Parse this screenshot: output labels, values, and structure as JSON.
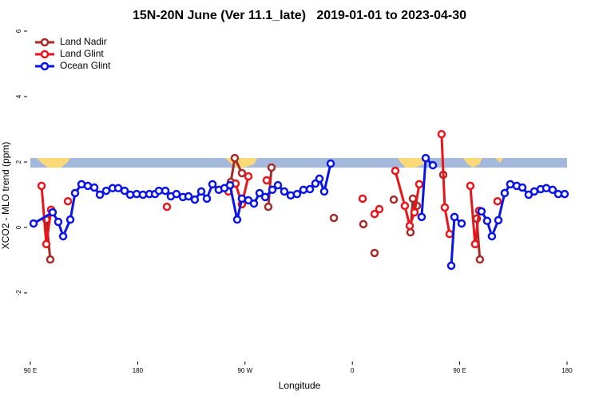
{
  "chart_data": {
    "type": "line",
    "title": "15N-20N June (Ver 11.1_late)   2019-01-01 to 2023-04-30",
    "x_label": "Longitude",
    "y_label": "XCO2 - MLO trend (ppm)",
    "xlim": [
      90,
      540
    ],
    "ylim": [
      -4,
      6
    ],
    "xticks": [
      {
        "value": 90,
        "label": "90 E"
      },
      180,
      {
        "value": 270,
        "label": "90 W"
      },
      {
        "value": 360,
        "label": "0"
      },
      {
        "value": 450,
        "label": "90 E"
      },
      {
        "value": 540,
        "label": "180"
      }
    ],
    "yticks": [
      -2,
      0,
      2,
      4,
      6
    ],
    "legend": "top-left",
    "series": [
      {
        "name": "Land Nadir",
        "color": "#a52a2a",
        "x": [
          103.4,
          106.7,
          110,
          258.1,
          261.4,
          267.4,
          270,
          289.5,
          292.2,
          300,
          344.5,
          360,
          369.2,
          375,
          378.6,
          385,
          394.7,
          400,
          408.7,
          410.7,
          414.1,
          420,
          436.2,
          450,
          464.3,
          466.9
        ],
        "values": [
          0.24,
          -0.98,
          null,
          1.39,
          2.12,
          1.66,
          null,
          0.63,
          1.83,
          null,
          0.29,
          null,
          0.1,
          null,
          -0.78,
          null,
          0.85,
          null,
          -0.15,
          0.88,
          0.66,
          null,
          1.61,
          null,
          0.27,
          -0.98
        ]
      },
      {
        "name": "Land Glint",
        "color": "#e8151b",
        "x": [
          99.4,
          103.4,
          107.4,
          108,
          121.5,
          150,
          204.5,
          240,
          256.1,
          262.1,
          267.4,
          272.8,
          275,
          288.2,
          300,
          368.6,
          375,
          378.6,
          382.6,
          385,
          396.0,
          404.0,
          408.1,
          412.1,
          416.1,
          419,
          434.8,
          437.5,
          441.5,
          445,
          458.9,
          462.9,
          466.3,
          470,
          481.7
        ],
        "values": [
          1.27,
          -0.51,
          0.54,
          null,
          0.8,
          null,
          0.63,
          null,
          1.1,
          1.34,
          0.71,
          1.56,
          null,
          1.44,
          null,
          0.88,
          null,
          0.41,
          0.56,
          null,
          1.73,
          0.66,
          0.05,
          0.46,
          1.32,
          null,
          2.85,
          0.61,
          -0.2,
          null,
          1.27,
          -0.51,
          0.51,
          null,
          0.8
        ]
      },
      {
        "name": "Ocean Glint",
        "color": "#0a14e6",
        "x": [
          92.7,
          108.7,
          113.4,
          117.5,
          123.5,
          127.5,
          132.9,
          138.2,
          143.6,
          148.3,
          153.6,
          159.0,
          163.7,
          169.0,
          173.7,
          179.1,
          184.4,
          189.8,
          194.5,
          197.8,
          203.2,
          207.8,
          212.5,
          217.9,
          222.6,
          227.9,
          233.3,
          238.0,
          242.7,
          248.0,
          252.7,
          257.4,
          263.4,
          267.4,
          272.8,
          277.5,
          282.2,
          286.9,
          292.9,
          297.6,
          302.9,
          308.3,
          313.6,
          319.0,
          324.4,
          329.0,
          332.4,
          336.4,
          341.8,
          400,
          418.1,
          421.5,
          427.5,
          430,
          442.9,
          445.6,
          451.6,
          455,
          468.3,
          473.0,
          477.0,
          482.4,
          487.7,
          492.4,
          497.8,
          502.5,
          507.8,
          512.5,
          517.9,
          522.6,
          527.9,
          532.6,
          538.0
        ],
        "values": [
          0.12,
          0.46,
          0.17,
          -0.27,
          0.24,
          1.05,
          1.32,
          1.27,
          1.22,
          1.0,
          1.12,
          1.2,
          1.2,
          1.12,
          1.0,
          1.02,
          1.0,
          1.02,
          1.02,
          1.12,
          1.12,
          0.95,
          1.02,
          0.93,
          0.95,
          0.85,
          1.1,
          0.88,
          1.32,
          1.15,
          1.2,
          1.29,
          0.24,
          0.88,
          0.83,
          0.73,
          1.05,
          0.93,
          1.15,
          1.29,
          1.1,
          0.98,
          1.02,
          1.15,
          1.17,
          1.34,
          1.49,
          1.1,
          1.95,
          null,
          0.32,
          2.12,
          1.9,
          null,
          -1.17,
          0.32,
          0.12,
          null,
          0.49,
          0.2,
          -0.27,
          0.22,
          1.05,
          1.32,
          1.27,
          1.22,
          1.0,
          1.1,
          1.17,
          1.2,
          1.15,
          1.02,
          1.02
        ]
      }
    ]
  }
}
